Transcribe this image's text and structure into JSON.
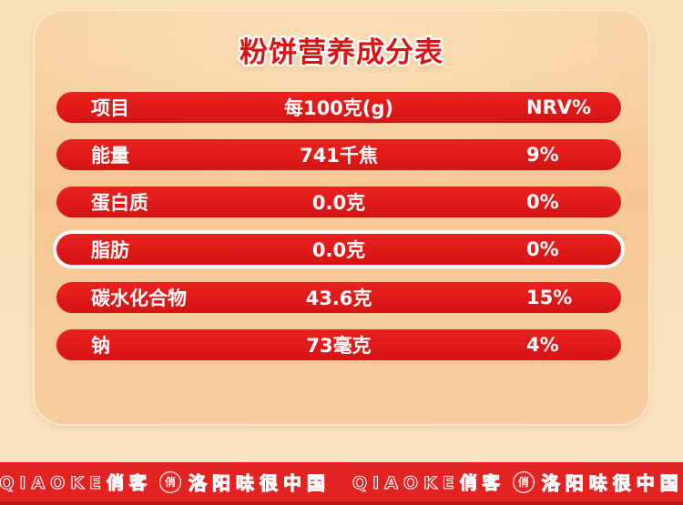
{
  "title": "粉饼营养成分表",
  "table": {
    "header": {
      "item": "项目",
      "value": "每100克(g)",
      "nrv": "NRV%"
    },
    "rows": [
      {
        "item": "能量",
        "value": "741千焦",
        "nrv": "9%",
        "highlighted": false
      },
      {
        "item": "蛋白质",
        "value": "0.0克",
        "nrv": "0%",
        "highlighted": false
      },
      {
        "item": "脂肪",
        "value": "0.0克",
        "nrv": "0%",
        "highlighted": true
      },
      {
        "item": "碳水化合物",
        "value": "43.6克",
        "nrv": "15%",
        "highlighted": false
      },
      {
        "item": "钠",
        "value": "73毫克",
        "nrv": "4%",
        "highlighted": false
      }
    ]
  },
  "chart_data": {
    "type": "table",
    "title": "粉饼营养成分表",
    "columns": [
      "项目",
      "每100克(g)",
      "NRV%"
    ],
    "rows": [
      [
        "能量",
        "741千焦",
        "9%"
      ],
      [
        "蛋白质",
        "0.0克",
        "0%"
      ],
      [
        "脂肪",
        "0.0克",
        "0%"
      ],
      [
        "碳水化合物",
        "43.6克",
        "15%"
      ],
      [
        "钠",
        "73毫克",
        "4%"
      ]
    ]
  },
  "footer": {
    "brand": "QIAOKE俏客",
    "stamp": "俏",
    "slogan": "洛阳味很中国",
    "repeat_count": 2
  },
  "colors": {
    "row_red": "#dc1717",
    "footer_red": "#e32222",
    "footer_red_dark": "#b81717",
    "panel_peach": "#f6c794",
    "background_cream": "#f9e1bb",
    "title_red": "#dd1212",
    "text_white": "#ffffff"
  }
}
